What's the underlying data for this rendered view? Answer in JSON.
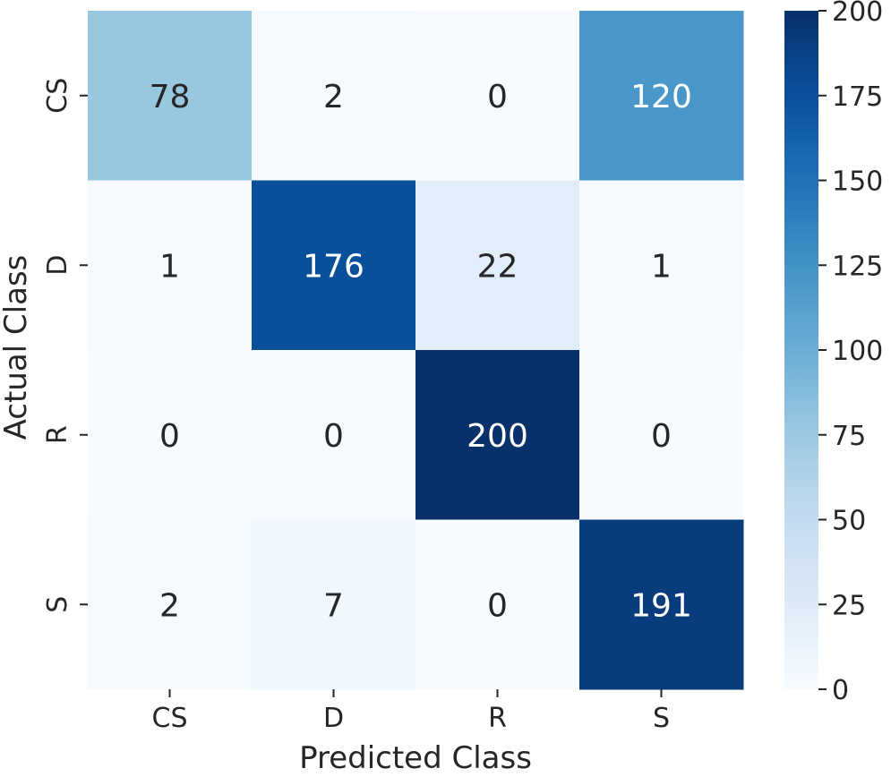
{
  "chart_data": {
    "type": "heatmap",
    "title": "",
    "xlabel": "Predicted Class",
    "ylabel": "Actual Class",
    "x_categories": [
      "CS",
      "D",
      "R",
      "S"
    ],
    "y_categories": [
      "CS",
      "D",
      "R",
      "S"
    ],
    "values": [
      [
        78,
        2,
        0,
        120
      ],
      [
        1,
        176,
        22,
        1
      ],
      [
        0,
        0,
        200,
        0
      ],
      [
        2,
        7,
        0,
        191
      ]
    ],
    "colorbar": {
      "min": 0,
      "max": 200,
      "ticks": [
        0,
        25,
        50,
        75,
        100,
        125,
        150,
        175,
        200
      ],
      "colormap": "Blues"
    },
    "colors": {
      "low": "#f7fbff",
      "high": "#08306b",
      "text_dark": "#262626",
      "text_light": "#ffffff"
    }
  }
}
